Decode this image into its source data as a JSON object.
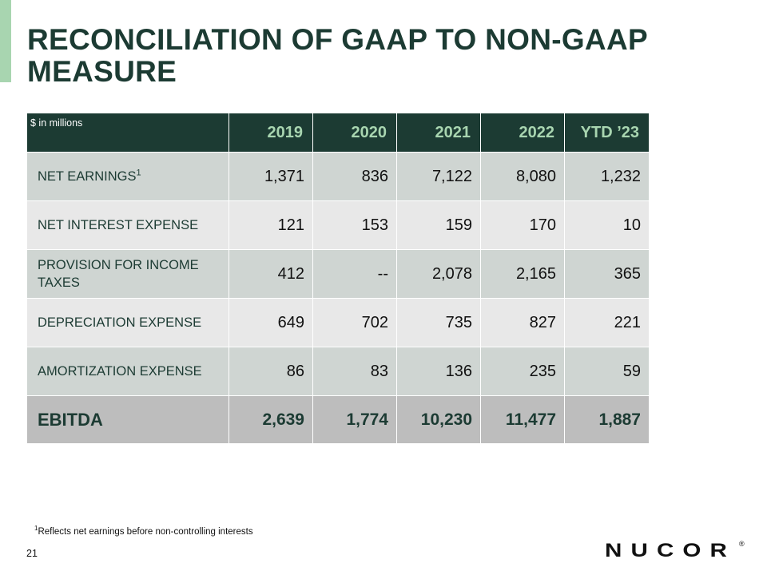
{
  "title": "RECONCILIATION OF GAAP TO NON-GAAP MEASURE",
  "table": {
    "unit_label": "$ in millions",
    "columns": [
      "2019",
      "2020",
      "2021",
      "2022",
      "YTD ’23"
    ],
    "rows": [
      {
        "label": "NET EARNINGS",
        "footnote_ref": "1",
        "values": [
          "1,371",
          "836",
          "7,122",
          "8,080",
          "1,232"
        ]
      },
      {
        "label": "NET INTEREST EXPENSE",
        "values": [
          "121",
          "153",
          "159",
          "170",
          "10"
        ]
      },
      {
        "label": "PROVISION FOR INCOME TAXES",
        "values": [
          "412",
          "--",
          "2,078",
          "2,165",
          "365"
        ]
      },
      {
        "label": "DEPRECIATION EXPENSE",
        "values": [
          "649",
          "702",
          "735",
          "827",
          "221"
        ]
      },
      {
        "label": "AMORTIZATION EXPENSE",
        "values": [
          "86",
          "83",
          "136",
          "235",
          "59"
        ]
      }
    ],
    "total": {
      "label": "EBITDA",
      "values": [
        "2,639",
        "1,774",
        "10,230",
        "11,477",
        "1,887"
      ]
    }
  },
  "footnote": {
    "marker": "1",
    "text": "Reflects net earnings before non-controlling interests"
  },
  "page_number": "21",
  "logo": {
    "text": "NUCOR",
    "registered": "®"
  },
  "colors": {
    "header_bg": "#1c3b33",
    "year_text": "#a8d5b0",
    "row_dark": "#cfd5d2",
    "row_light": "#e8e8e8",
    "total_bg": "#bdbdbd",
    "accent": "#a8d5b0"
  }
}
